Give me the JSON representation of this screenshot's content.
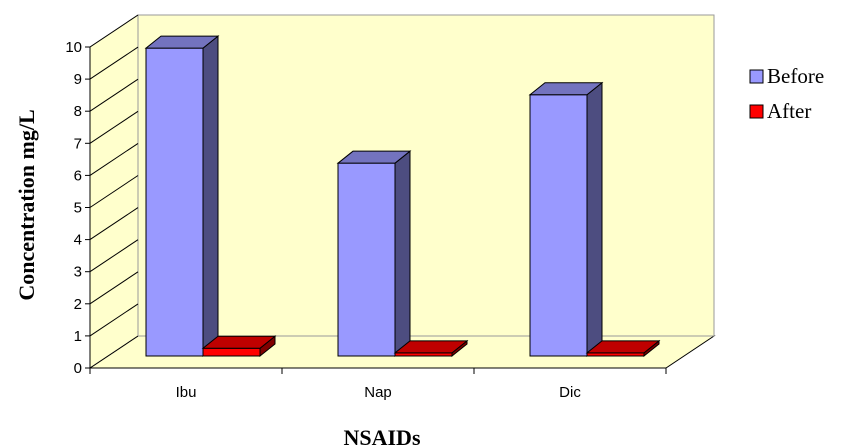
{
  "chart_data": {
    "type": "bar",
    "categories": [
      "Ibu",
      "Nap",
      "Dic"
    ],
    "series": [
      {
        "name": "Before",
        "values": [
          9.9,
          6.2,
          8.4
        ],
        "color": "#9999FF"
      },
      {
        "name": "After",
        "values": [
          0.25,
          0.1,
          0.1
        ],
        "color": "#FF0000"
      }
    ],
    "xlabel": "NSAIDs",
    "ylabel": "Concentration mg/L",
    "ylim": [
      0,
      10
    ],
    "yticks": [
      "0",
      "1",
      "2",
      "3",
      "4",
      "5",
      "6",
      "7",
      "8",
      "9",
      "10"
    ],
    "legend_position": "right",
    "grid": false,
    "style": "3d-column",
    "wall_color": "#FFFFCC"
  }
}
